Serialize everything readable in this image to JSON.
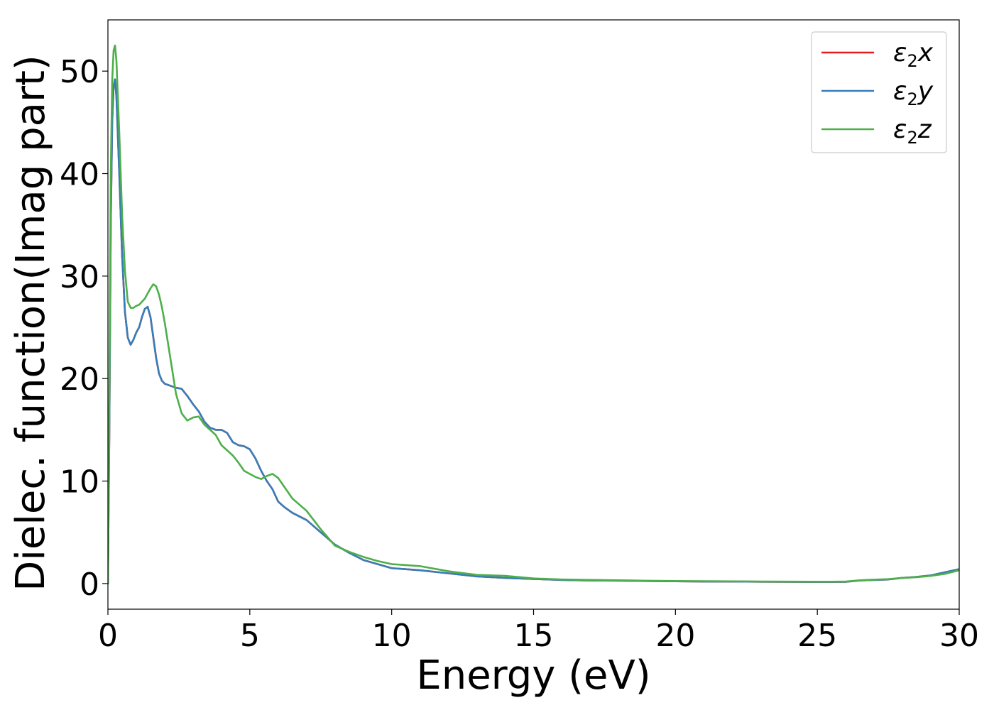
{
  "chart_data": {
    "type": "line",
    "xlabel": "Energy (eV)",
    "ylabel": "Dielec. function(Imag part)",
    "xlim": [
      0,
      30
    ],
    "ylim": [
      -2.5,
      55
    ],
    "xticks": [
      0,
      5,
      10,
      15,
      20,
      25,
      30
    ],
    "yticks": [
      0,
      10,
      20,
      30,
      40,
      50
    ],
    "grid": false,
    "legend_position": "top-right",
    "series": [
      {
        "name": "ε₂x",
        "legend_main": "ε",
        "legend_sub": "2",
        "legend_axis": "x",
        "color": "#e41a1c",
        "x": [
          0,
          0.05,
          0.1,
          0.15,
          0.2,
          0.25,
          0.3,
          0.4,
          0.5,
          0.6,
          0.7,
          0.8,
          0.9,
          1.0,
          1.1,
          1.2,
          1.3,
          1.4,
          1.5,
          1.6,
          1.7,
          1.8,
          1.9,
          2.0,
          2.2,
          2.4,
          2.6,
          2.8,
          3.0,
          3.2,
          3.4,
          3.6,
          3.8,
          4.0,
          4.2,
          4.4,
          4.6,
          4.8,
          5.0,
          5.2,
          5.4,
          5.6,
          5.8,
          6.0,
          6.2,
          6.5,
          7.0,
          7.5,
          8.0,
          8.5,
          9.0,
          9.5,
          10.0,
          10.5,
          11.0,
          12.0,
          13.0,
          14.0,
          15.0,
          16.0,
          17.0,
          18.0,
          19.0,
          20.0,
          21.0,
          22.0,
          23.0,
          24.0,
          25.0,
          25.5,
          26.0,
          26.5,
          27.0,
          27.5,
          28.0,
          28.5,
          29.0,
          29.5,
          30.0
        ],
        "y": [
          0,
          15,
          35,
          45,
          48.5,
          49.2,
          47.5,
          40,
          32,
          26.5,
          24,
          23.3,
          23.8,
          24.5,
          25,
          26,
          26.8,
          27,
          26,
          24,
          22,
          20.5,
          19.8,
          19.5,
          19.3,
          19.1,
          19,
          18.3,
          17.5,
          16.8,
          15.8,
          15.2,
          15,
          15,
          14.7,
          13.8,
          13.5,
          13.4,
          13.1,
          12.2,
          11,
          10,
          9.2,
          8,
          7.5,
          6.9,
          6.2,
          5,
          3.8,
          3.0,
          2.3,
          1.9,
          1.5,
          1.4,
          1.3,
          1.0,
          0.7,
          0.55,
          0.45,
          0.35,
          0.3,
          0.28,
          0.25,
          0.22,
          0.2,
          0.2,
          0.18,
          0.17,
          0.16,
          0.16,
          0.17,
          0.3,
          0.35,
          0.4,
          0.55,
          0.65,
          0.8,
          1.1,
          1.4
        ]
      },
      {
        "name": "ε₂y",
        "legend_main": "ε",
        "legend_sub": "2",
        "legend_axis": "y",
        "color": "#377eb8",
        "x": [
          0,
          0.05,
          0.1,
          0.15,
          0.2,
          0.25,
          0.3,
          0.4,
          0.5,
          0.6,
          0.7,
          0.8,
          0.9,
          1.0,
          1.1,
          1.2,
          1.3,
          1.4,
          1.5,
          1.6,
          1.7,
          1.8,
          1.9,
          2.0,
          2.2,
          2.4,
          2.6,
          2.8,
          3.0,
          3.2,
          3.4,
          3.6,
          3.8,
          4.0,
          4.2,
          4.4,
          4.6,
          4.8,
          5.0,
          5.2,
          5.4,
          5.6,
          5.8,
          6.0,
          6.2,
          6.5,
          7.0,
          7.5,
          8.0,
          8.5,
          9.0,
          9.5,
          10.0,
          10.5,
          11.0,
          12.0,
          13.0,
          14.0,
          15.0,
          16.0,
          17.0,
          18.0,
          19.0,
          20.0,
          21.0,
          22.0,
          23.0,
          24.0,
          25.0,
          25.5,
          26.0,
          26.5,
          27.0,
          27.5,
          28.0,
          28.5,
          29.0,
          29.5,
          30.0
        ],
        "y": [
          0,
          15,
          35,
          45,
          48.5,
          49.2,
          47.5,
          40,
          32,
          26.5,
          24,
          23.3,
          23.8,
          24.5,
          25,
          26,
          26.8,
          27,
          26,
          24,
          22,
          20.5,
          19.8,
          19.5,
          19.3,
          19.1,
          19,
          18.3,
          17.5,
          16.8,
          15.8,
          15.2,
          15,
          15,
          14.7,
          13.8,
          13.5,
          13.4,
          13.1,
          12.2,
          11,
          10,
          9.2,
          8,
          7.5,
          6.9,
          6.2,
          5,
          3.8,
          3.0,
          2.3,
          1.9,
          1.5,
          1.4,
          1.3,
          1.0,
          0.7,
          0.55,
          0.45,
          0.35,
          0.3,
          0.28,
          0.25,
          0.22,
          0.2,
          0.2,
          0.18,
          0.17,
          0.16,
          0.16,
          0.17,
          0.3,
          0.35,
          0.4,
          0.55,
          0.65,
          0.8,
          1.1,
          1.4
        ]
      },
      {
        "name": "ε₂z",
        "legend_main": "ε",
        "legend_sub": "2",
        "legend_axis": "z",
        "color": "#4daf4a",
        "x": [
          0,
          0.05,
          0.1,
          0.15,
          0.2,
          0.25,
          0.3,
          0.4,
          0.5,
          0.6,
          0.7,
          0.8,
          0.9,
          1.0,
          1.1,
          1.2,
          1.3,
          1.4,
          1.5,
          1.6,
          1.7,
          1.8,
          1.9,
          2.0,
          2.2,
          2.4,
          2.6,
          2.8,
          3.0,
          3.2,
          3.4,
          3.6,
          3.8,
          4.0,
          4.2,
          4.4,
          4.6,
          4.8,
          5.0,
          5.2,
          5.4,
          5.6,
          5.8,
          6.0,
          6.2,
          6.5,
          7.0,
          7.5,
          8.0,
          8.5,
          9.0,
          9.5,
          10.0,
          10.5,
          11.0,
          12.0,
          13.0,
          14.0,
          15.0,
          16.0,
          17.0,
          18.0,
          19.0,
          20.0,
          21.0,
          22.0,
          23.0,
          24.0,
          25.0,
          25.5,
          26.0,
          26.5,
          27.0,
          27.5,
          28.0,
          28.5,
          29.0,
          29.5,
          30.0
        ],
        "y": [
          0,
          18,
          40,
          49,
          52,
          52.5,
          51,
          44,
          36,
          30.5,
          27.5,
          26.9,
          26.9,
          27.1,
          27.2,
          27.5,
          27.8,
          28.3,
          28.8,
          29.2,
          29.0,
          28.2,
          27.0,
          25.5,
          22.0,
          18.5,
          16.6,
          15.9,
          16.2,
          16.3,
          15.5,
          15.0,
          14.5,
          13.5,
          13.0,
          12.5,
          11.8,
          11.0,
          10.7,
          10.4,
          10.2,
          10.5,
          10.7,
          10.3,
          9.5,
          8.3,
          7.1,
          5.3,
          3.7,
          3.1,
          2.6,
          2.2,
          1.9,
          1.8,
          1.7,
          1.2,
          0.85,
          0.75,
          0.5,
          0.4,
          0.35,
          0.32,
          0.28,
          0.25,
          0.23,
          0.22,
          0.2,
          0.19,
          0.18,
          0.18,
          0.2,
          0.32,
          0.38,
          0.43,
          0.55,
          0.62,
          0.75,
          0.95,
          1.3
        ]
      }
    ]
  }
}
